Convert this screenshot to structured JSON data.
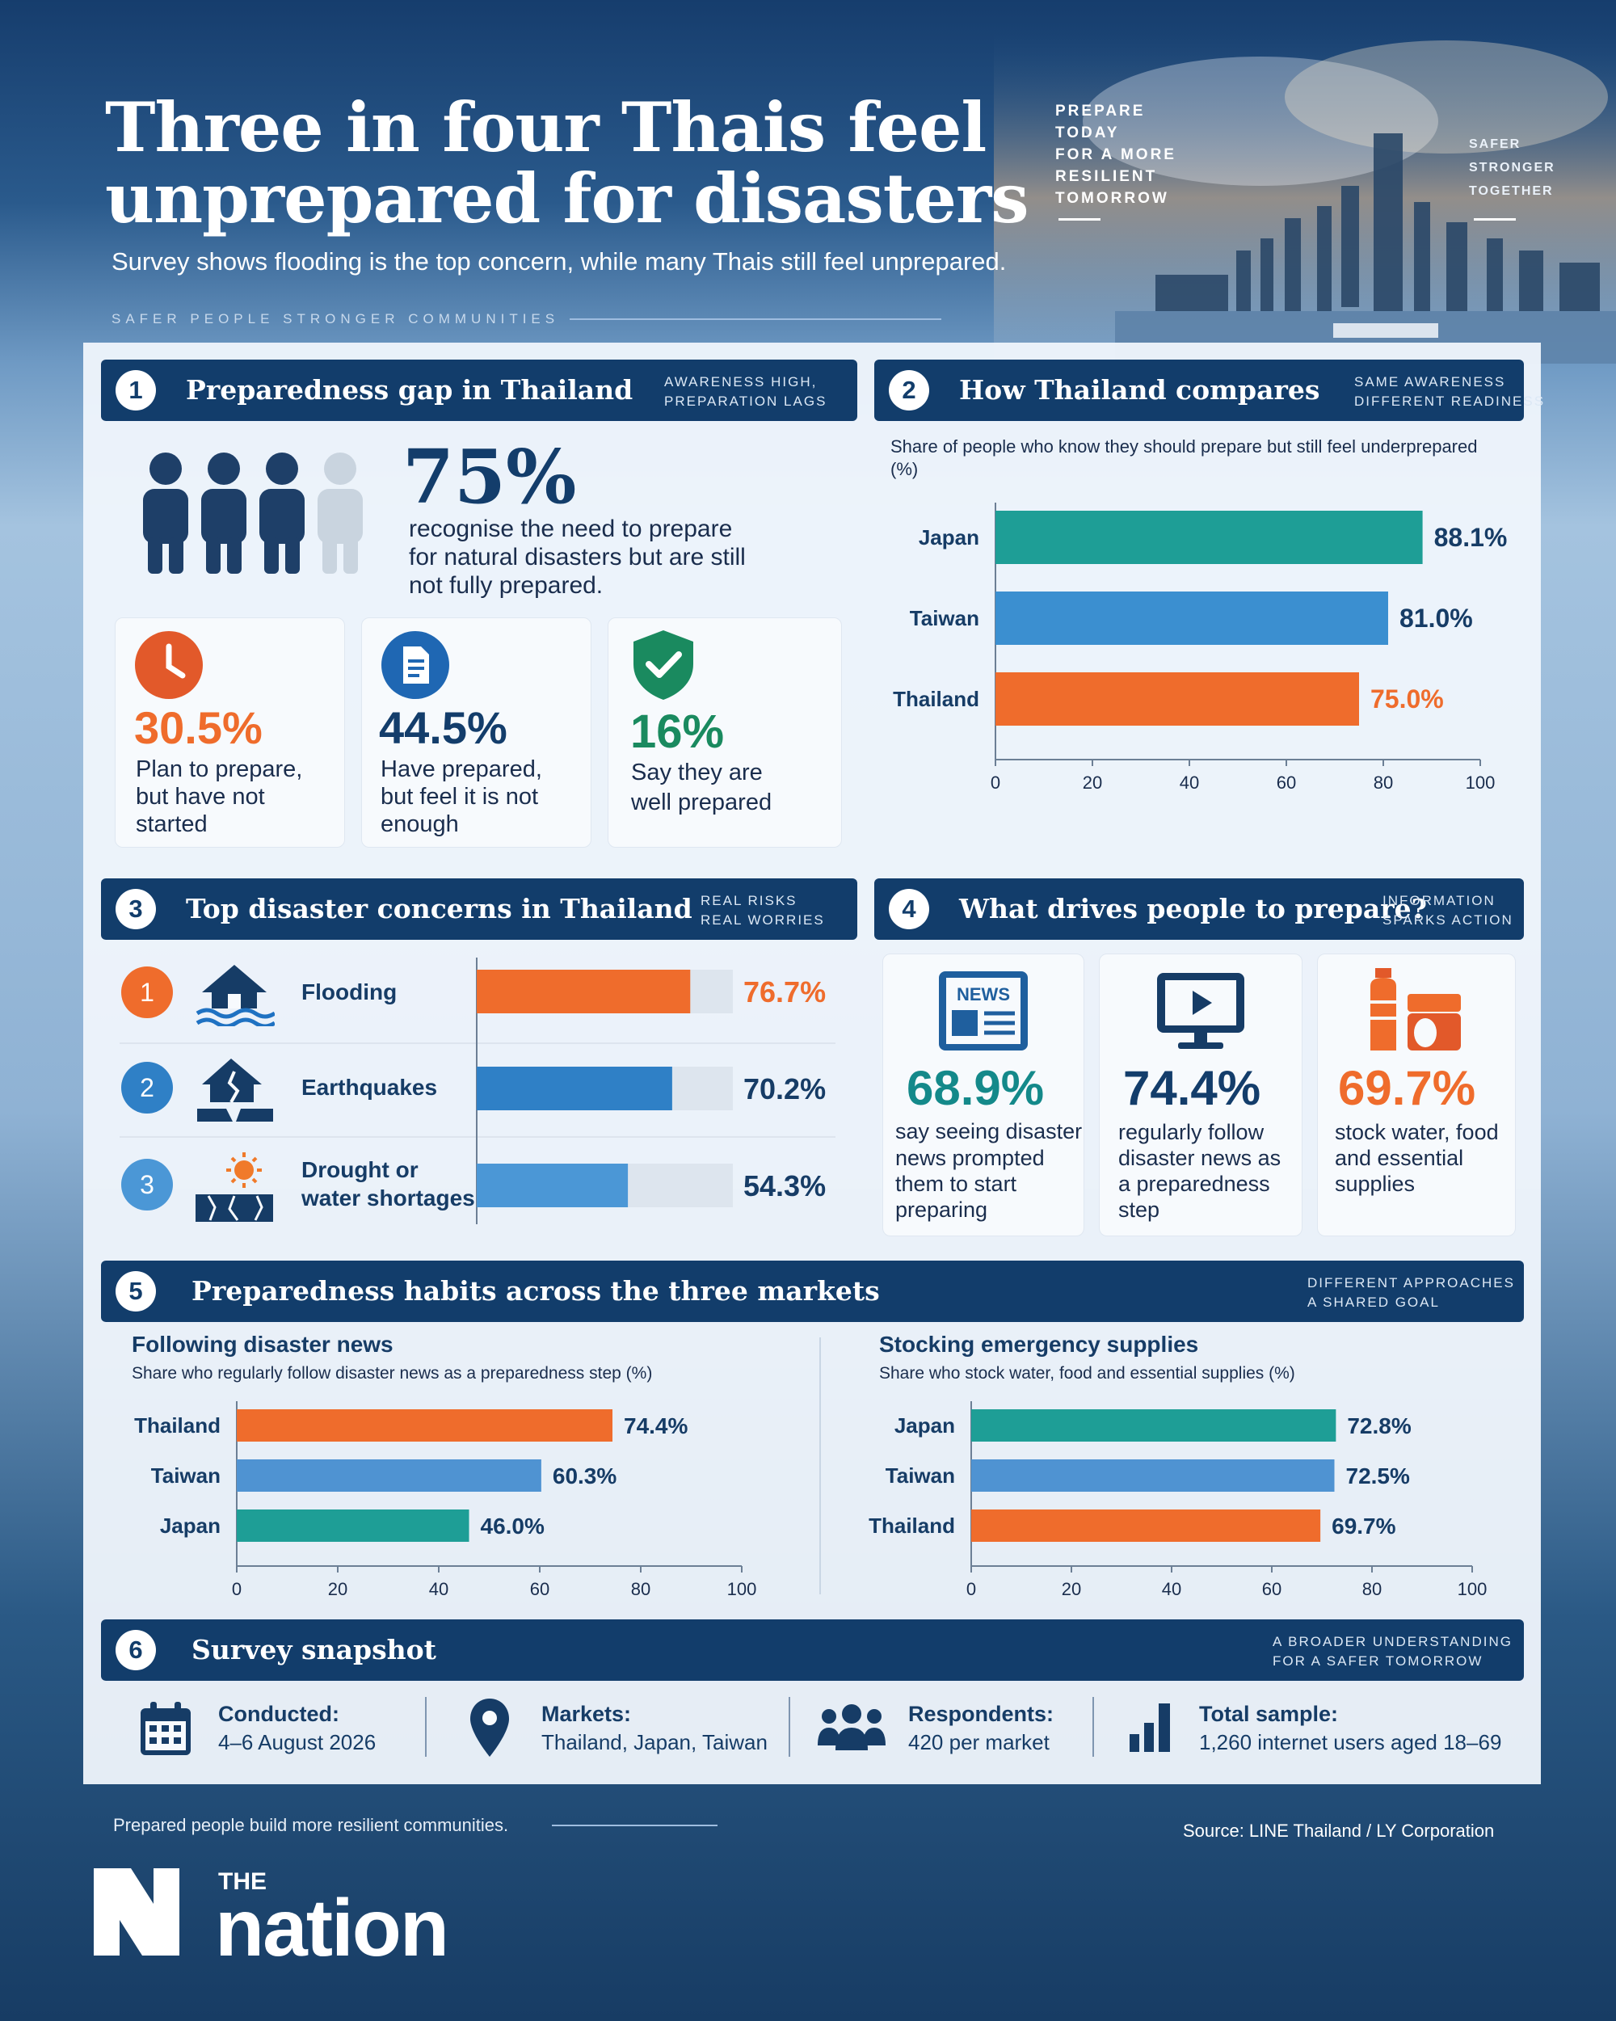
{
  "header": {
    "title_line1": "Three in four Thais feel",
    "title_line2": "unprepared for disasters",
    "subtitle": "Survey shows flooding is the top concern, while many Thais still feel unprepared.",
    "tagline": "SAFER PEOPLE   STRONGER COMMUNITIES",
    "sky_text_1": "PREPARE\nTODAY\nFOR A MORE\nRESILIENT\nTOMORROW",
    "sky_text_2": "SAFER\nSTRONGER\nTOGETHER"
  },
  "section1": {
    "number": "1",
    "title": "Preparedness gap in Thailand",
    "note": "AWARENESS HIGH,\nPREPARATION LAGS",
    "headline_value": "75%",
    "headline_text_1": "recognise the need to prepare",
    "headline_text_2": "for natural disasters but are still",
    "headline_text_3": "not fully prepared.",
    "stats": [
      {
        "value": "30.5%",
        "line1": "Plan to prepare,",
        "line2": "but have not",
        "line3": "started",
        "icon": "clock-icon"
      },
      {
        "value": "44.5%",
        "line1": "Have prepared,",
        "line2": "but feel it is not",
        "line3": "enough",
        "icon": "document-icon"
      },
      {
        "value": "16%",
        "line1": "Say they are",
        "line2": "well prepared",
        "line3": "",
        "icon": "check-shield-icon"
      }
    ]
  },
  "section2": {
    "number": "2",
    "title": "How Thailand compares",
    "note": "SAME AWARENESS\nDIFFERENT READINESS",
    "caption_1": "Share of people who know they should prepare but still feel underprepared",
    "caption_2": "(%)"
  },
  "section3": {
    "number": "3",
    "title": "Top disaster concerns in Thailand",
    "note": "REAL RISKS\nREAL WORRIES",
    "items": [
      {
        "rank": "1",
        "label_1": "Flooding",
        "label_2": "",
        "value": 76.7,
        "display": "76.7%",
        "icon": "flood-house-icon"
      },
      {
        "rank": "2",
        "label_1": "Earthquakes",
        "label_2": "",
        "value": 70.2,
        "display": "70.2%",
        "icon": "earthquake-house-icon"
      },
      {
        "rank": "3",
        "label_1": "Drought or",
        "label_2": "water shortages",
        "value": 54.3,
        "display": "54.3%",
        "icon": "drought-sun-icon"
      }
    ]
  },
  "section4": {
    "number": "4",
    "title": "What drives people to prepare?",
    "note": "INFORMATION\nSPARKS ACTION",
    "news_icon_text": "NEWS",
    "items": [
      {
        "value": "68.9%",
        "line1": "say seeing disaster",
        "line2": "news prompted",
        "line3": "them to start",
        "line4": "preparing",
        "icon": "newspaper-icon"
      },
      {
        "value": "74.4%",
        "line1": "regularly follow",
        "line2": "disaster news as",
        "line3": "a preparedness",
        "line4": "step",
        "icon": "tv-play-icon"
      },
      {
        "value": "69.7%",
        "line1": "stock water, food",
        "line2": "and essential",
        "line3": "supplies",
        "line4": "",
        "icon": "supplies-icon"
      }
    ]
  },
  "section5": {
    "number": "5",
    "title": "Preparedness habits across the three markets",
    "note": "DIFFERENT APPROACHES\nA SHARED GOAL",
    "left_title": "Following disaster news",
    "left_caption": "Share who regularly follow disaster news as a preparedness step (%)",
    "right_title": "Stocking emergency supplies",
    "right_caption": "Share who stock water, food and essential supplies (%)"
  },
  "section6": {
    "number": "6",
    "title": "Survey snapshot",
    "note": "A BROADER UNDERSTANDING\nFOR A SAFER TOMORROW",
    "items": [
      {
        "label": "Conducted:",
        "value": "4–6 August 2026",
        "icon": "calendar-icon"
      },
      {
        "label": "Markets:",
        "value": "Thailand, Japan, Taiwan",
        "icon": "location-pin-icon"
      },
      {
        "label": "Respondents:",
        "value": "420 per market",
        "icon": "people-icon"
      },
      {
        "label": "Total sample:",
        "value": "1,260 internet users aged 18–69",
        "icon": "bar-chart-icon"
      }
    ]
  },
  "footer": {
    "note": "Prepared people build more resilient communities.",
    "source": "Source: LINE Thailand / LY Corporation",
    "logo_the": "THE",
    "logo_name": "nation"
  },
  "colors": {
    "navy": "#123d6b",
    "orange": "#ef6c2c",
    "teal": "#1e9e96",
    "blue": "#3b8fd0",
    "green": "#1a8a5f",
    "light_blue": "#4f93d2"
  },
  "chart_data": [
    {
      "type": "bar",
      "orientation": "horizontal",
      "categories": [
        "Japan",
        "Taiwan",
        "Thailand"
      ],
      "values": [
        88.1,
        81.0,
        75.0
      ],
      "labels": [
        "88.1%",
        "81.0%",
        "75.0%"
      ],
      "colors": [
        "#1e9e96",
        "#3b8fd0",
        "#ef6c2c"
      ],
      "xlim": [
        0,
        100
      ],
      "ticks": [
        "0",
        "20",
        "40",
        "60",
        "80",
        "100"
      ]
    },
    {
      "type": "bar",
      "orientation": "horizontal",
      "categories": [
        "Flooding",
        "Earthquakes",
        "Drought or water shortages"
      ],
      "values": [
        76.7,
        70.2,
        54.3
      ],
      "xlim": [
        0,
        100
      ]
    },
    {
      "type": "bar",
      "orientation": "horizontal",
      "categories": [
        "Thailand",
        "Taiwan",
        "Japan"
      ],
      "values": [
        74.4,
        60.3,
        46.0
      ],
      "labels": [
        "74.4%",
        "60.3%",
        "46.0%"
      ],
      "colors": [
        "#ef6c2c",
        "#4f93d2",
        "#1e9e96"
      ],
      "xlim": [
        0,
        100
      ],
      "ticks": [
        "0",
        "20",
        "40",
        "60",
        "80",
        "100"
      ]
    },
    {
      "type": "bar",
      "orientation": "horizontal",
      "categories": [
        "Japan",
        "Taiwan",
        "Thailand"
      ],
      "values": [
        72.8,
        72.5,
        69.7
      ],
      "labels": [
        "72.8%",
        "72.5%",
        "69.7%"
      ],
      "colors": [
        "#1e9e96",
        "#4f93d2",
        "#ef6c2c"
      ],
      "xlim": [
        0,
        100
      ],
      "ticks": [
        "0",
        "20",
        "40",
        "60",
        "80",
        "100"
      ]
    }
  ]
}
